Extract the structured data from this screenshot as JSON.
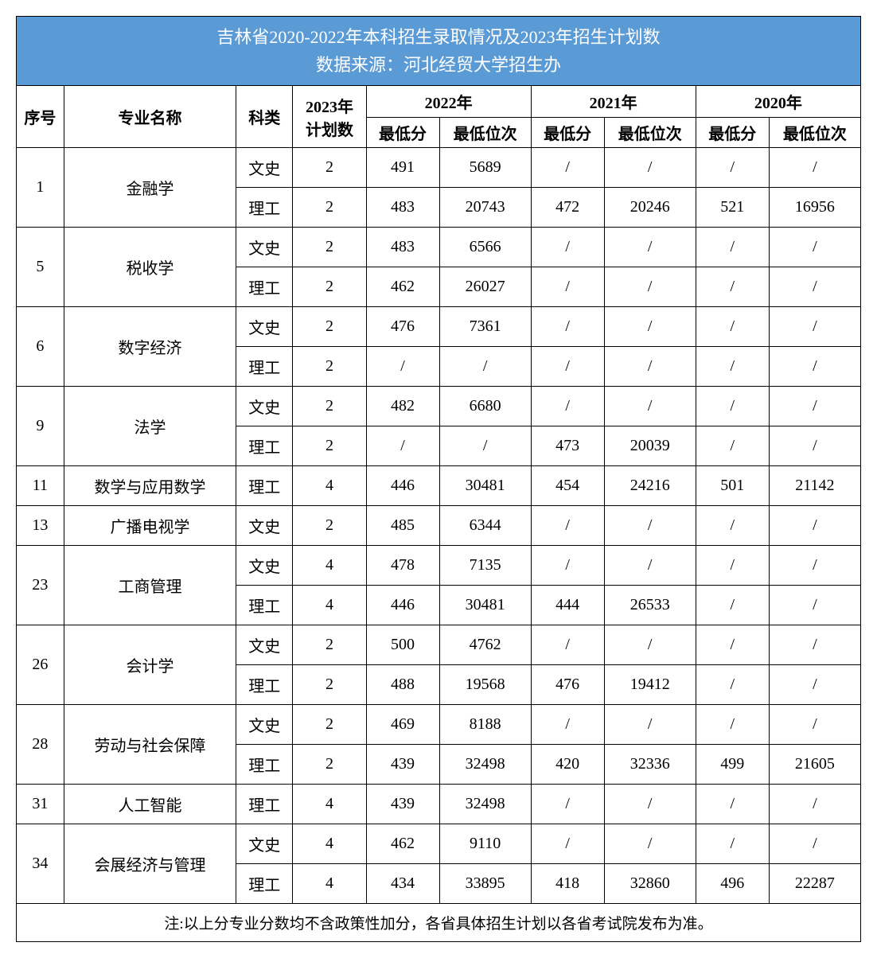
{
  "title_line1": "吉林省2020-2022年本科招生录取情况及2023年招生计划数",
  "title_line2": "数据来源：河北经贸大学招生办",
  "headers": {
    "seq": "序号",
    "major": "专业名称",
    "subject": "科类",
    "plan": "2023年计划数",
    "y2022": "2022年",
    "y2021": "2021年",
    "y2020": "2020年",
    "min_score": "最低分",
    "min_rank": "最低位次"
  },
  "note": "注:以上分专业分数均不含政策性加分，各省具体招生计划以各省考试院发布为准。",
  "rows": [
    {
      "seq": "1",
      "major": "金融学",
      "sub": [
        {
          "subject": "文史",
          "plan": "2",
          "s22": "491",
          "r22": "5689",
          "s21": "/",
          "r21": "/",
          "s20": "/",
          "r20": "/"
        },
        {
          "subject": "理工",
          "plan": "2",
          "s22": "483",
          "r22": "20743",
          "s21": "472",
          "r21": "20246",
          "s20": "521",
          "r20": "16956"
        }
      ]
    },
    {
      "seq": "5",
      "major": "税收学",
      "sub": [
        {
          "subject": "文史",
          "plan": "2",
          "s22": "483",
          "r22": "6566",
          "s21": "/",
          "r21": "/",
          "s20": "/",
          "r20": "/"
        },
        {
          "subject": "理工",
          "plan": "2",
          "s22": "462",
          "r22": "26027",
          "s21": "/",
          "r21": "/",
          "s20": "/",
          "r20": "/"
        }
      ]
    },
    {
      "seq": "6",
      "major": "数字经济",
      "sub": [
        {
          "subject": "文史",
          "plan": "2",
          "s22": "476",
          "r22": "7361",
          "s21": "/",
          "r21": "/",
          "s20": "/",
          "r20": "/"
        },
        {
          "subject": "理工",
          "plan": "2",
          "s22": "/",
          "r22": "/",
          "s21": "/",
          "r21": "/",
          "s20": "/",
          "r20": "/"
        }
      ]
    },
    {
      "seq": "9",
      "major": "法学",
      "sub": [
        {
          "subject": "文史",
          "plan": "2",
          "s22": "482",
          "r22": "6680",
          "s21": "/",
          "r21": "/",
          "s20": "/",
          "r20": "/"
        },
        {
          "subject": "理工",
          "plan": "2",
          "s22": "/",
          "r22": "/",
          "s21": "473",
          "r21": "20039",
          "s20": "/",
          "r20": "/"
        }
      ]
    },
    {
      "seq": "11",
      "major": "数学与应用数学",
      "sub": [
        {
          "subject": "理工",
          "plan": "4",
          "s22": "446",
          "r22": "30481",
          "s21": "454",
          "r21": "24216",
          "s20": "501",
          "r20": "21142"
        }
      ]
    },
    {
      "seq": "13",
      "major": "广播电视学",
      "sub": [
        {
          "subject": "文史",
          "plan": "2",
          "s22": "485",
          "r22": "6344",
          "s21": "/",
          "r21": "/",
          "s20": "/",
          "r20": "/"
        }
      ]
    },
    {
      "seq": "23",
      "major": "工商管理",
      "sub": [
        {
          "subject": "文史",
          "plan": "4",
          "s22": "478",
          "r22": "7135",
          "s21": "/",
          "r21": "/",
          "s20": "/",
          "r20": "/"
        },
        {
          "subject": "理工",
          "plan": "4",
          "s22": "446",
          "r22": "30481",
          "s21": "444",
          "r21": "26533",
          "s20": "/",
          "r20": "/"
        }
      ]
    },
    {
      "seq": "26",
      "major": "会计学",
      "sub": [
        {
          "subject": "文史",
          "plan": "2",
          "s22": "500",
          "r22": "4762",
          "s21": "/",
          "r21": "/",
          "s20": "/",
          "r20": "/"
        },
        {
          "subject": "理工",
          "plan": "2",
          "s22": "488",
          "r22": "19568",
          "s21": "476",
          "r21": "19412",
          "s20": "/",
          "r20": "/"
        }
      ]
    },
    {
      "seq": "28",
      "major": "劳动与社会保障",
      "sub": [
        {
          "subject": "文史",
          "plan": "2",
          "s22": "469",
          "r22": "8188",
          "s21": "/",
          "r21": "/",
          "s20": "/",
          "r20": "/"
        },
        {
          "subject": "理工",
          "plan": "2",
          "s22": "439",
          "r22": "32498",
          "s21": "420",
          "r21": "32336",
          "s20": "499",
          "r20": "21605"
        }
      ]
    },
    {
      "seq": "31",
      "major": "人工智能",
      "sub": [
        {
          "subject": "理工",
          "plan": "4",
          "s22": "439",
          "r22": "32498",
          "s21": "/",
          "r21": "/",
          "s20": "/",
          "r20": "/"
        }
      ]
    },
    {
      "seq": "34",
      "major": "会展经济与管理",
      "sub": [
        {
          "subject": "文史",
          "plan": "4",
          "s22": "462",
          "r22": "9110",
          "s21": "/",
          "r21": "/",
          "s20": "/",
          "r20": "/"
        },
        {
          "subject": "理工",
          "plan": "4",
          "s22": "434",
          "r22": "33895",
          "s21": "418",
          "r21": "32860",
          "s20": "496",
          "r20": "22287"
        }
      ]
    }
  ],
  "styling": {
    "header_bg": "#5b9bd5",
    "header_text_color": "#ffffff",
    "border_color": "#000000",
    "cell_bg": "#ffffff",
    "title_fontsize": 22,
    "header_fontsize": 20,
    "data_fontsize": 20,
    "font_family": "SimSun"
  }
}
